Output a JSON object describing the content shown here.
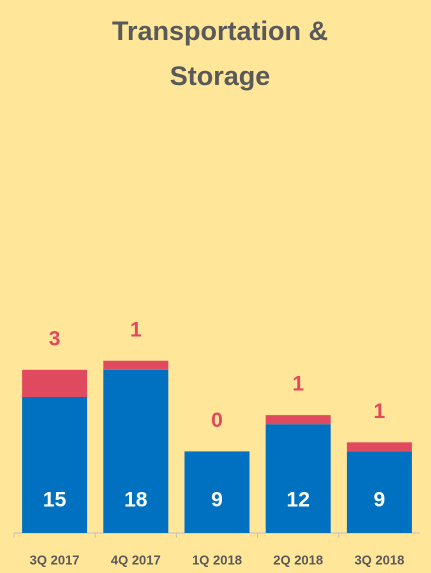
{
  "chart_data": {
    "type": "stacked_bar",
    "title": [
      "Transportation &",
      "Storage"
    ],
    "categories": [
      "3Q 2017",
      "4Q 2017",
      "1Q 2018",
      "2Q 2018",
      "3Q 2018"
    ],
    "series": [
      {
        "color": "#0070c0",
        "values": [
          15,
          18,
          9,
          12,
          9
        ]
      },
      {
        "color": "#e04a5f",
        "values": [
          3,
          1,
          0,
          1,
          1
        ]
      }
    ],
    "ylim": [
      0,
      45
    ]
  }
}
